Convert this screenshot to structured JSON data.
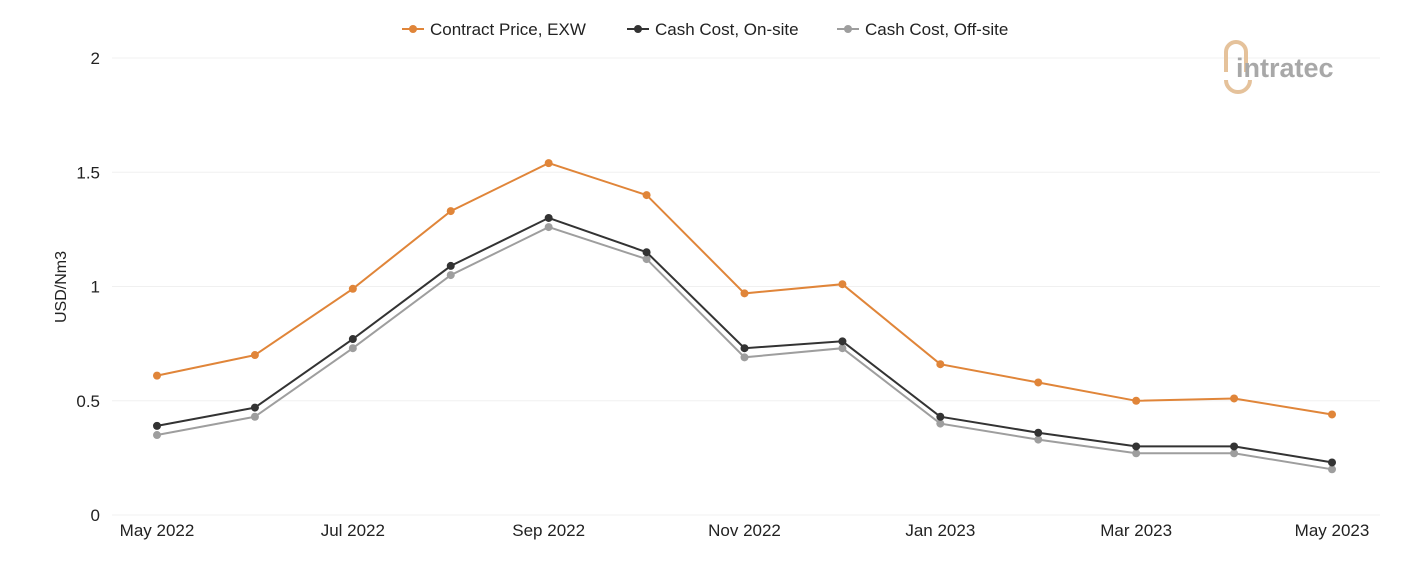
{
  "chart_data": {
    "type": "line",
    "ylabel": "USD/Nm3",
    "ylim": [
      0,
      2
    ],
    "yticks": [
      0,
      0.5,
      1,
      1.5,
      2
    ],
    "ytick_labels": [
      "0",
      "0.5",
      "1",
      "1.5",
      "2"
    ],
    "x": [
      "May 2022",
      "Jun 2022",
      "Jul 2022",
      "Aug 2022",
      "Sep 2022",
      "Oct 2022",
      "Nov 2022",
      "Dec 2022",
      "Jan 2023",
      "Feb 2023",
      "Mar 2023",
      "Apr 2023",
      "May 2023"
    ],
    "xtick_labels": [
      "May 2022",
      "Jul 2022",
      "Sep 2022",
      "Nov 2022",
      "Jan 2023",
      "Mar 2023",
      "May 2023"
    ],
    "grid": true,
    "legend_position": "top-center",
    "series": [
      {
        "name": "Contract Price, EXW",
        "color": "#e08539",
        "values": [
          0.61,
          0.7,
          0.99,
          1.33,
          1.54,
          1.4,
          0.97,
          1.01,
          0.66,
          0.58,
          0.5,
          0.51,
          0.44
        ]
      },
      {
        "name": "Cash Cost, On-site",
        "color": "#333333",
        "values": [
          0.39,
          0.47,
          0.77,
          1.09,
          1.3,
          1.15,
          0.73,
          0.76,
          0.43,
          0.36,
          0.3,
          0.3,
          0.23
        ]
      },
      {
        "name": "Cash Cost, Off-site",
        "color": "#9e9e9e",
        "values": [
          0.35,
          0.43,
          0.73,
          1.05,
          1.26,
          1.12,
          0.69,
          0.73,
          0.4,
          0.33,
          0.27,
          0.27,
          0.2
        ]
      }
    ]
  },
  "logo": {
    "text": "intratec",
    "accent_color": "#e5c29b",
    "text_color": "#a8a8a8"
  }
}
